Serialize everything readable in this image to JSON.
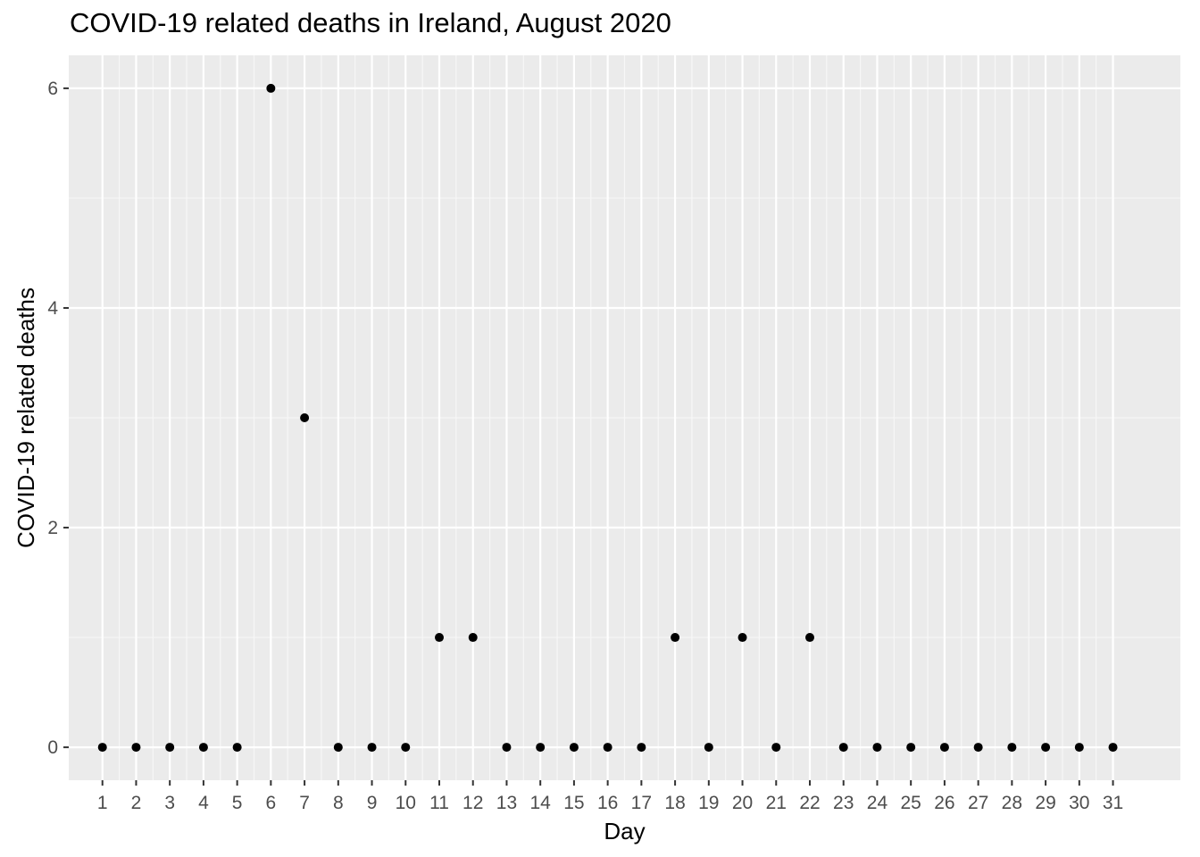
{
  "chart_data": {
    "type": "scatter",
    "title": "COVID-19 related deaths in Ireland, August 2020",
    "xlabel": "Day",
    "ylabel": "COVID-19 related deaths",
    "x": [
      1,
      2,
      3,
      4,
      5,
      6,
      7,
      8,
      9,
      10,
      11,
      12,
      13,
      14,
      15,
      16,
      17,
      18,
      19,
      20,
      21,
      22,
      23,
      24,
      25,
      26,
      27,
      28,
      29,
      30,
      31
    ],
    "y": [
      0,
      0,
      0,
      0,
      0,
      6,
      3,
      0,
      0,
      0,
      1,
      1,
      0,
      0,
      0,
      0,
      0,
      1,
      0,
      1,
      0,
      1,
      0,
      0,
      0,
      0,
      0,
      0,
      0,
      0,
      0
    ],
    "x_ticks": [
      "1",
      "2",
      "3",
      "4",
      "5",
      "6",
      "7",
      "8",
      "9",
      "10",
      "11",
      "12",
      "13",
      "14",
      "15",
      "16",
      "17",
      "18",
      "19",
      "20",
      "21",
      "22",
      "23",
      "24",
      "25",
      "26",
      "27",
      "28",
      "29",
      "30",
      "31"
    ],
    "y_ticks": [
      "0",
      "2",
      "4",
      "6"
    ],
    "ylim": [
      -0.3,
      6.3
    ],
    "grid": true,
    "panel_color": "#ebebeb",
    "point_color": "#000000"
  }
}
